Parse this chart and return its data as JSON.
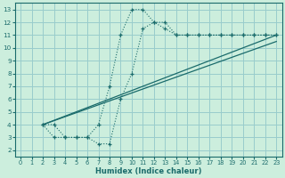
{
  "xlabel": "Humidex (Indice chaleur)",
  "bg_color": "#cceedd",
  "grid_color": "#99cccc",
  "line_color": "#1a6b6b",
  "xlim": [
    -0.5,
    23.5
  ],
  "ylim": [
    1.5,
    13.5
  ],
  "xticks": [
    0,
    1,
    2,
    3,
    4,
    5,
    6,
    7,
    8,
    9,
    10,
    11,
    12,
    13,
    14,
    15,
    16,
    17,
    18,
    19,
    20,
    21,
    22,
    23
  ],
  "yticks": [
    2,
    3,
    4,
    5,
    6,
    7,
    8,
    9,
    10,
    11,
    12,
    13
  ],
  "curve1_x": [
    2,
    3,
    4,
    5,
    6,
    7,
    8,
    9,
    10,
    11,
    12,
    13,
    14,
    15,
    16,
    17,
    18,
    19,
    20,
    21,
    22,
    23
  ],
  "curve1_y": [
    4,
    4,
    3,
    3,
    3,
    4,
    7,
    11,
    13,
    13,
    12,
    11.5,
    11,
    11,
    11,
    11,
    11,
    11,
    11,
    11,
    11,
    11
  ],
  "curve2_x": [
    2,
    3,
    4,
    5,
    6,
    7,
    8,
    9,
    10,
    11,
    12,
    13,
    14,
    15,
    16,
    17,
    18,
    19,
    20,
    21,
    22,
    23
  ],
  "curve2_y": [
    4,
    3,
    3,
    3,
    3,
    2.5,
    2.5,
    6,
    8,
    11.5,
    12,
    12,
    11,
    11,
    11,
    11,
    11,
    11,
    11,
    11,
    11,
    11
  ],
  "line1_x": [
    2,
    23
  ],
  "line1_y": [
    4,
    11
  ],
  "line2_x": [
    2,
    23
  ],
  "line2_y": [
    4,
    10.5
  ]
}
